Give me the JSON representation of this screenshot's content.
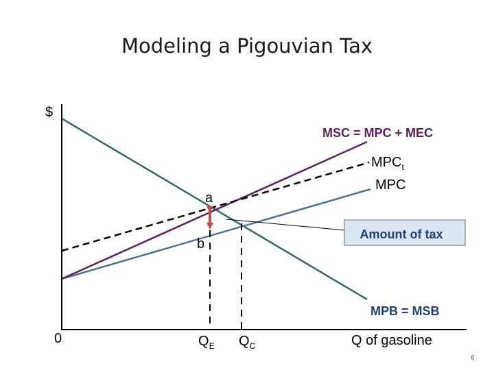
{
  "title": "Modeling a Pigouvian Tax",
  "axes": {
    "y_label": "$",
    "x_label": "Q of gasoline",
    "origin": "0"
  },
  "curves": {
    "msc": "MSC = MPC + MEC",
    "mpc_t": "MPC",
    "mpc_t_sub": "t",
    "mpc": "MPC",
    "mpb": "MPB = MSB"
  },
  "points": {
    "a": "a",
    "b": "b"
  },
  "quantities": {
    "qe": "Q",
    "qe_sub": "E",
    "qc": "Q",
    "qc_sub": "C"
  },
  "tax_box": "Amount of tax",
  "page_number": "6",
  "colors": {
    "msc_line": "#5b1f61",
    "mpc_line": "#4a7390",
    "mpb_line": "#2f6b6b",
    "tax_arrow": "#c0504d",
    "tax_box_fill": "#dbe6f3",
    "tax_text": "#1f3f7a"
  }
}
